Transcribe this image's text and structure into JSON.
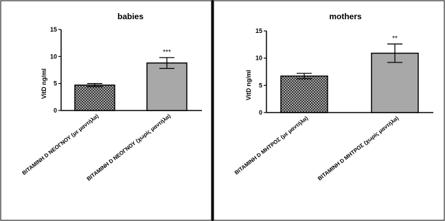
{
  "chart_data": [
    {
      "type": "bar",
      "title": "babies",
      "xlabel": "",
      "ylabel": "VitD ng/ml",
      "ylim": [
        0,
        15
      ],
      "yticks": [
        0,
        5,
        10,
        15
      ],
      "categories": [
        "ΒΙΤΑΜΙΝΗ D ΝΕΟΓΝΟΥ (με μαντήλα)",
        "ΒΙΤΑΜΙΝΗ D ΝΕΟΓΝΟΥ (χωρίς μαντήλα)"
      ],
      "values": [
        4.7,
        8.8
      ],
      "error": [
        0.3,
        1.0
      ],
      "significance": [
        "",
        "***"
      ],
      "bar_patterns": [
        "crosshatch",
        "solid"
      ],
      "bar_colors": [
        "#3a3a3a",
        "#a8a8a8"
      ],
      "grid": false,
      "legend": "none"
    },
    {
      "type": "bar",
      "title": "mothers",
      "xlabel": "",
      "ylabel": "VitD ng/ml",
      "ylim": [
        0,
        15
      ],
      "yticks": [
        0,
        5,
        10,
        15
      ],
      "categories": [
        "ΒΙΤΑΜΙΝΗ D ΜΗΤΡΟΣ (με μαντήλα)",
        "ΒΙΤΑΜΙΝΗ D ΜΗΤΡΟΣ (χωρίς μαντήλα)"
      ],
      "values": [
        6.7,
        10.9
      ],
      "error": [
        0.5,
        1.7
      ],
      "significance": [
        "",
        "**"
      ],
      "bar_patterns": [
        "crosshatch",
        "solid"
      ],
      "bar_colors": [
        "#3a3a3a",
        "#a8a8a8"
      ],
      "grid": false,
      "legend": "none"
    }
  ]
}
